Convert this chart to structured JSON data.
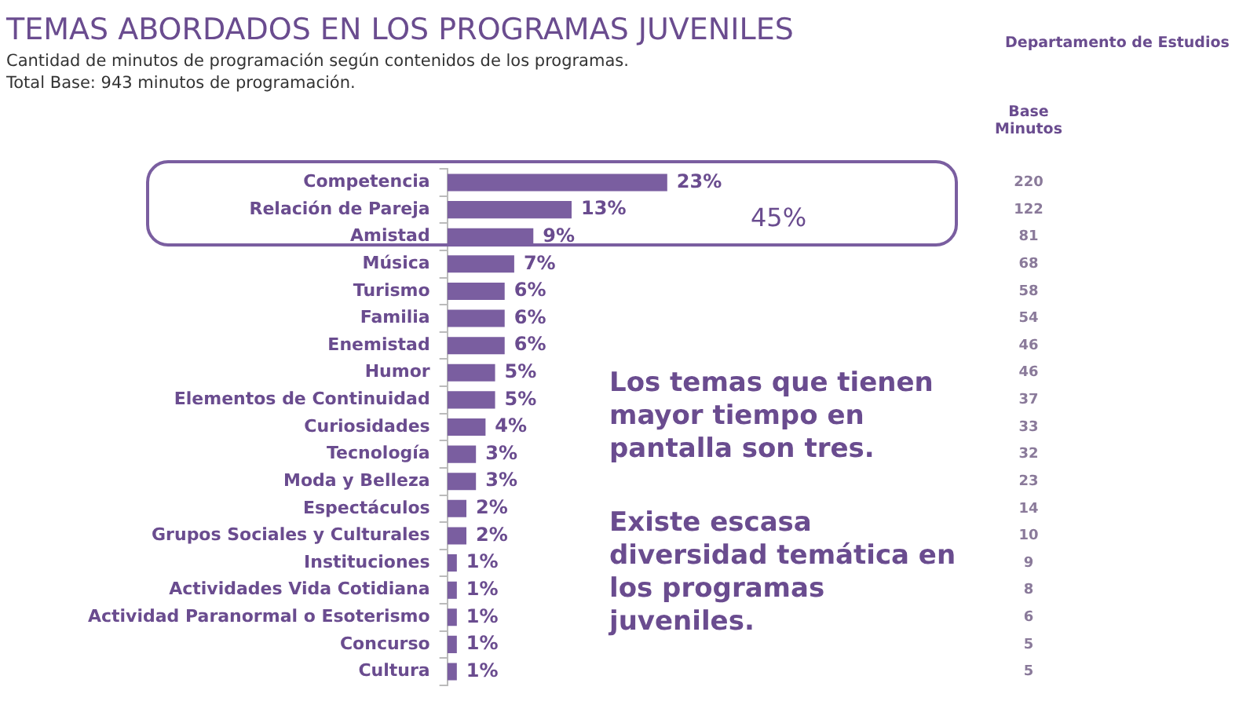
{
  "chart_data": {
    "type": "bar",
    "orientation": "horizontal",
    "title": "TEMAS ABORDADOS EN LOS PROGRAMAS JUVENILES",
    "subtitle": "Cantidad de minutos de programación según contenidos de los programas.",
    "categories": [
      "Competencia",
      "Relación de Pareja",
      "Amistad",
      "Música",
      "Turismo",
      "Familia",
      "Enemistad",
      "Humor",
      "Elementos de Continuidad",
      "Curiosidades",
      "Tecnología",
      "Moda y Belleza",
      "Espectáculos",
      "Grupos Sociales y Culturales",
      "Instituciones",
      "Actividades Vida Cotidiana",
      "Actividad Paranormal o Esoterismo",
      "Concurso",
      "Cultura"
    ],
    "values": [
      23,
      13,
      9,
      7,
      6,
      6,
      6,
      5,
      5,
      4,
      3,
      3,
      2,
      2,
      1,
      1,
      1,
      1,
      1
    ],
    "value_labels": [
      "23%",
      "13%",
      "9%",
      "7%",
      "6%",
      "6%",
      "6%",
      "5%",
      "5%",
      "4%",
      "3%",
      "3%",
      "2%",
      "2%",
      "1%",
      "1%",
      "1%",
      "1%",
      "1%"
    ],
    "color": "#7a5ea0",
    "grid": false,
    "legend": false,
    "tick_labels": "y",
    "annotations": [
      "Total Base: 943 minutos de programación.",
      "Departamento de Estudios",
      "Los temas que tienen mayor tiempo en pantalla son tres.",
      "Existe escasa diversidad temática en los programas juveniles.",
      "Base Minutos",
      "45%",
      "220",
      "122",
      "81",
      "68",
      "58",
      "54",
      "46",
      "46",
      "37",
      "33",
      "32",
      "23",
      "14",
      "10",
      "9",
      "8",
      "6",
      "5",
      "5"
    ]
  }
}
